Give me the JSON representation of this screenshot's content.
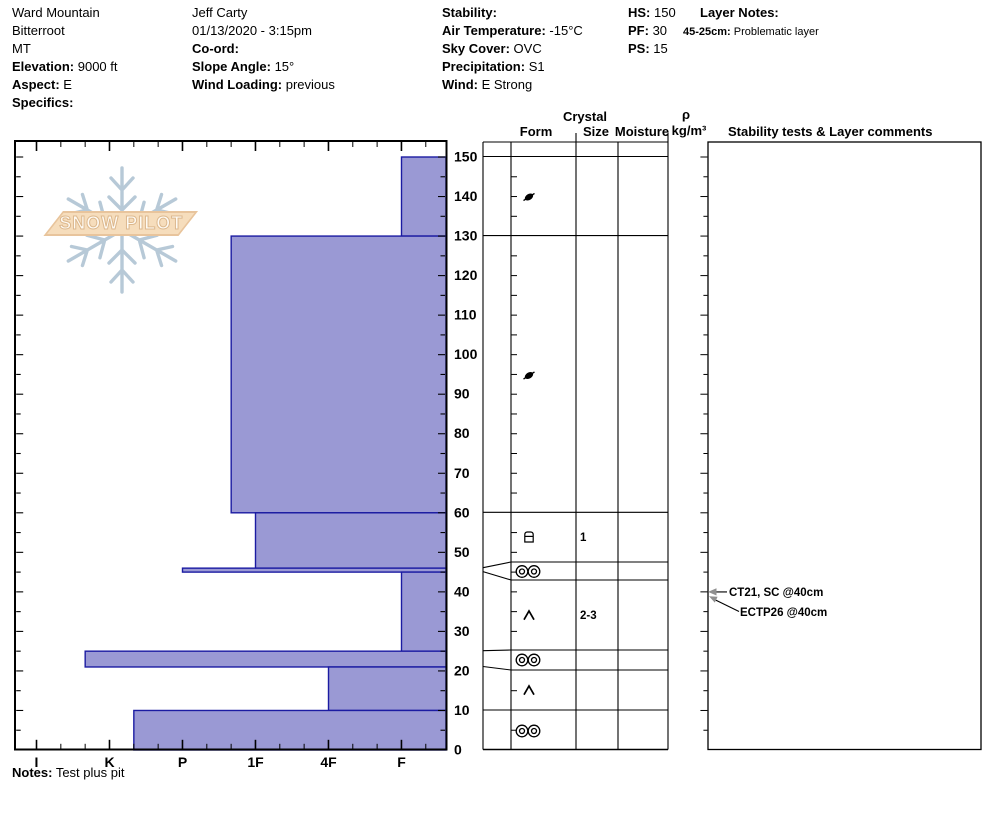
{
  "header": {
    "site": {
      "lines": [
        {
          "label": "",
          "value": "Ward Mountain"
        },
        {
          "label": "",
          "value": "Bitterroot"
        },
        {
          "label": "",
          "value": "MT"
        },
        {
          "label": "Elevation:",
          "value": " 9000 ft"
        },
        {
          "label": "Aspect:",
          "value": " E"
        },
        {
          "label": "Specifics:",
          "value": ""
        }
      ]
    },
    "observer": {
      "lines": [
        {
          "label": "",
          "value": "Jeff Carty"
        },
        {
          "label": "",
          "value": "01/13/2020 - 3:15pm"
        },
        {
          "label": "Co-ord:",
          "value": ""
        },
        {
          "label": "Slope Angle:",
          "value": " 15°"
        },
        {
          "label": "Wind Loading:",
          "value": " previous"
        }
      ]
    },
    "weather": {
      "lines": [
        {
          "label": "Stability:",
          "value": ""
        },
        {
          "label": "Air Temperature:",
          "value": " -15°C"
        },
        {
          "label": "Sky Cover:",
          "value": " OVC"
        },
        {
          "label": "Precipitation:",
          "value": " S1"
        },
        {
          "label": "Wind:",
          "value": " E Strong"
        }
      ]
    },
    "snowpack": {
      "lines": [
        {
          "label": "HS:",
          "value": " 150"
        },
        {
          "label": "PF:",
          "value": " 30"
        },
        {
          "label": "PS:",
          "value": " 15"
        }
      ]
    },
    "layer_notes": {
      "title": "Layer Notes:",
      "note_label": "45-25cm:",
      "note_text": " Problematic layer"
    }
  },
  "watermark": {
    "text": "SNOW PILOT"
  },
  "axes": {
    "depth_labels": [
      "150",
      "140",
      "130",
      "120",
      "110",
      "100",
      "90",
      "80",
      "70",
      "60",
      "50",
      "40",
      "30",
      "20",
      "10",
      "0"
    ],
    "hardness_labels": [
      "I",
      "K",
      "P",
      "1F",
      "4F",
      "F"
    ]
  },
  "panel": {
    "crystal": "Crystal",
    "form": "Form",
    "size": "Size",
    "moisture": "Moisture",
    "rho": "ρ",
    "rho_units": "kg/m³",
    "stability": "Stability tests & Layer comments"
  },
  "chart_data": {
    "type": "bar",
    "orientation": "horizontal-snow-hardness-profile",
    "title": "Snow pit hardness profile",
    "depth_axis": {
      "unit": "cm",
      "min": 0,
      "max": 150
    },
    "hardness_categories": [
      "I",
      "K",
      "P",
      "1F",
      "4F",
      "F"
    ],
    "layers": [
      {
        "top_cm": 150,
        "bottom_cm": 130,
        "hardness": "F",
        "grain_form": "DF",
        "grain_size_mm": ""
      },
      {
        "top_cm": 130,
        "bottom_cm": 60,
        "hardness": "1F-",
        "grain_form": "DF",
        "grain_size_mm": ""
      },
      {
        "top_cm": 60,
        "bottom_cm": 46,
        "hardness": "1F",
        "grain_form": "FCxr",
        "grain_size_mm": "1"
      },
      {
        "top_cm": 46,
        "bottom_cm": 45,
        "hardness": "P",
        "grain_form": "MFcr",
        "grain_size_mm": ""
      },
      {
        "top_cm": 45,
        "bottom_cm": 25,
        "hardness": "F",
        "grain_form": "DH",
        "grain_size_mm": "2-3"
      },
      {
        "top_cm": 25,
        "bottom_cm": 21,
        "hardness": "K-",
        "grain_form": "MFcr",
        "grain_size_mm": ""
      },
      {
        "top_cm": 21,
        "bottom_cm": 10,
        "hardness": "4F",
        "grain_form": "DH",
        "grain_size_mm": ""
      },
      {
        "top_cm": 10,
        "bottom_cm": 0,
        "hardness": "K+",
        "grain_form": "MFcr",
        "grain_size_mm": ""
      }
    ]
  },
  "annotations": {
    "tests": [
      {
        "text": "CT21, SC @40cm",
        "depth_cm": 40
      },
      {
        "text": "ECTP26 @40cm",
        "depth_cm": 40
      }
    ]
  },
  "notes": {
    "label": "Notes:",
    "text": " Test plus pit"
  },
  "colors": {
    "bar_fill": "#9a99d4",
    "bar_border": "#1b1ba2",
    "watermark_flake": "#b7c9d7",
    "watermark_banner": "#f6ddbc",
    "watermark_banner_border": "#e8c49c",
    "arrow_gray": "#8f8f8f"
  }
}
